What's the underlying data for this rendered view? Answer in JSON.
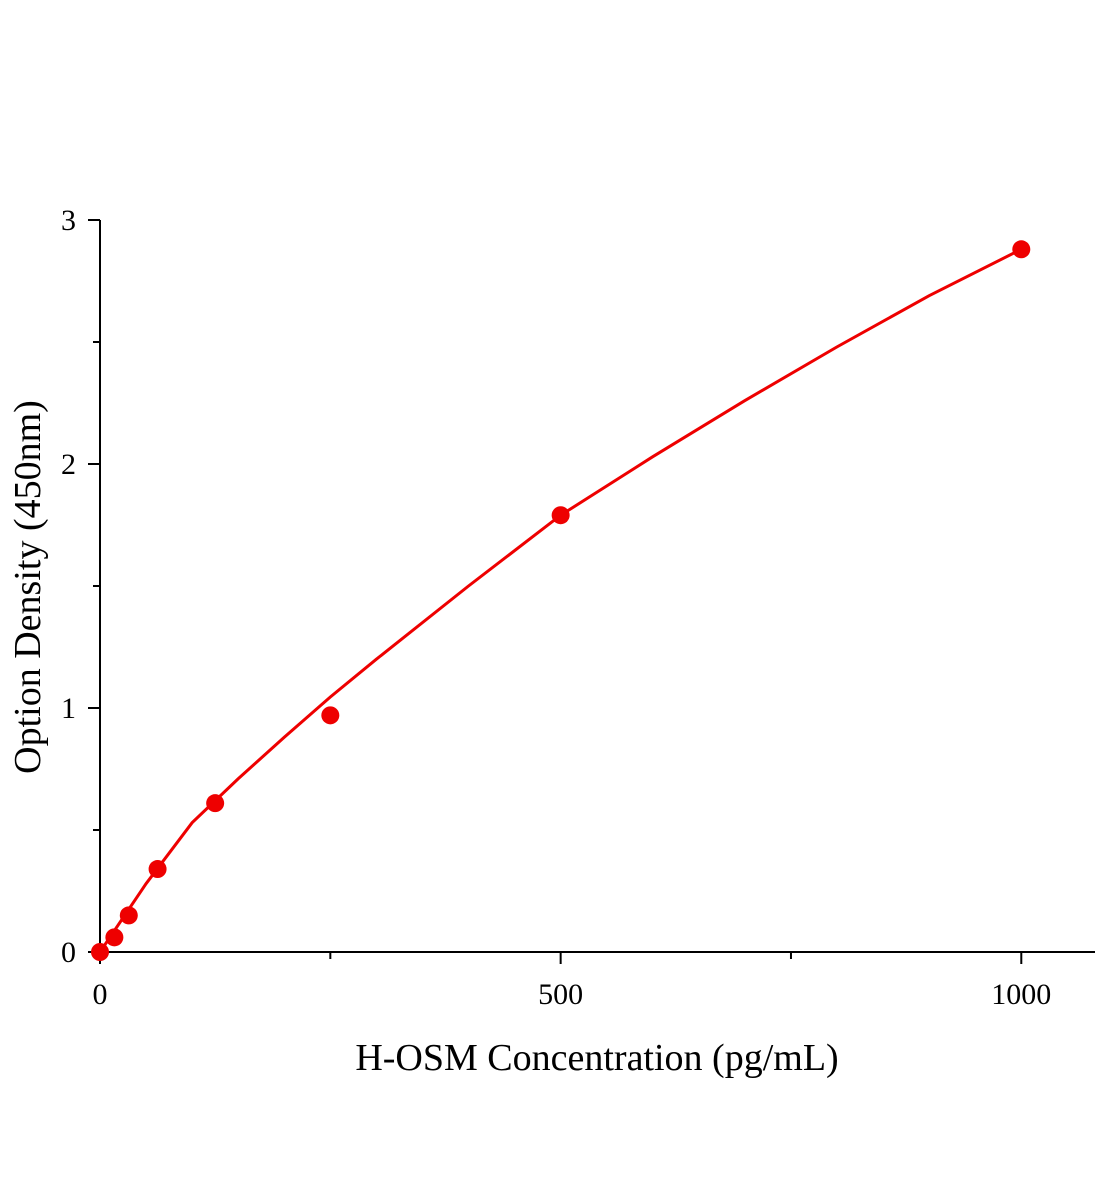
{
  "chart_data": {
    "type": "scatter",
    "x_label": "H-OSM Concentration (pg/mL)",
    "y_label": "Option Density (450nm)",
    "xlim": [
      0,
      1080
    ],
    "ylim": [
      0,
      3
    ],
    "xticks": [
      0,
      500,
      1000
    ],
    "xminorticks": [
      250,
      750
    ],
    "yticks": [
      0,
      1,
      2,
      3
    ],
    "yminorticks": [
      0.5,
      1.5,
      2.5
    ],
    "series": [
      {
        "mode": "markers",
        "color": "#ee0000",
        "x": [
          0,
          15.6,
          31.25,
          62.5,
          125,
          250,
          500,
          1000
        ],
        "values": [
          0,
          0.06,
          0.15,
          0.34,
          0.61,
          0.97,
          1.79,
          2.88
        ]
      },
      {
        "mode": "line",
        "color": "#ee0000",
        "x": [
          0,
          50,
          100,
          150,
          200,
          250,
          300,
          400,
          500,
          600,
          700,
          800,
          900,
          1000
        ],
        "values": [
          0,
          0.28,
          0.53,
          0.71,
          0.88,
          1.045,
          1.2,
          1.5,
          1.79,
          2.03,
          2.26,
          2.48,
          2.69,
          2.88
        ]
      }
    ]
  }
}
